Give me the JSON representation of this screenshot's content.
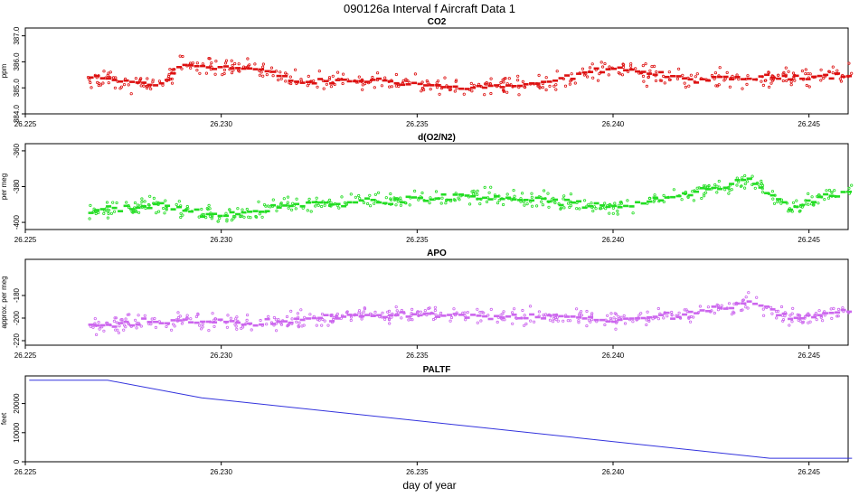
{
  "figure": {
    "title": "090126a   Interval f Aircraft Data 1",
    "xlabel": "day of year"
  },
  "chart_data": [
    {
      "type": "scatter",
      "title": "CO2",
      "ylabel": "ppm",
      "xlim": [
        26.225,
        26.246
      ],
      "ylim": [
        384.0,
        387.3
      ],
      "x_ticks": [
        "26.225",
        "26.230",
        "26.235",
        "26.240",
        "26.245"
      ],
      "y_ticks": [
        "384.0",
        "385.0",
        "386.0",
        "387.0"
      ],
      "color": "#dd1111",
      "x_range": [
        26.2266,
        26.2461
      ],
      "trend": [
        [
          26.2266,
          385.4
        ],
        [
          26.2285,
          385.1
        ],
        [
          26.229,
          385.9
        ],
        [
          26.23,
          385.8
        ],
        [
          26.231,
          385.7
        ],
        [
          26.232,
          385.2
        ],
        [
          26.234,
          385.3
        ],
        [
          26.236,
          385.0
        ],
        [
          26.238,
          385.1
        ],
        [
          26.24,
          385.8
        ],
        [
          26.242,
          385.3
        ],
        [
          26.244,
          385.4
        ],
        [
          26.2461,
          385.5
        ]
      ],
      "scatter_spread": 0.55,
      "mean_spread": 0.15
    },
    {
      "type": "scatter",
      "title": "d(O2/N2)",
      "ylabel": "per meg",
      "xlim": [
        26.225,
        26.246
      ],
      "ylim": [
        -404,
        -356
      ],
      "x_ticks": [
        "26.225",
        "26.230",
        "26.235",
        "26.240",
        "26.245"
      ],
      "y_ticks": [
        "-400",
        "-380",
        "-360"
      ],
      "color": "#22dd22",
      "x_range": [
        26.2266,
        26.2461
      ],
      "trend": [
        [
          26.2266,
          -394
        ],
        [
          26.2285,
          -390
        ],
        [
          26.23,
          -397
        ],
        [
          26.232,
          -390
        ],
        [
          26.234,
          -388
        ],
        [
          26.236,
          -386
        ],
        [
          26.238,
          -387
        ],
        [
          26.24,
          -392
        ],
        [
          26.242,
          -384
        ],
        [
          26.2435,
          -377
        ],
        [
          26.2445,
          -392
        ],
        [
          26.2461,
          -381
        ]
      ],
      "scatter_spread": 7,
      "mean_spread": 3
    },
    {
      "type": "scatter",
      "title": "APO",
      "ylabel": "approx. per meg",
      "xlim": [
        26.225,
        26.246
      ],
      "ylim": [
        -224,
        -148
      ],
      "x_ticks": [
        "26.225",
        "26.230",
        "26.235",
        "26.240",
        "26.245"
      ],
      "y_ticks": [
        "-220",
        "-200",
        "-180"
      ],
      "color": "#cc66ee",
      "x_range": [
        26.2266,
        26.2461
      ],
      "trend": [
        [
          26.2266,
          -207
        ],
        [
          26.229,
          -202
        ],
        [
          26.231,
          -204
        ],
        [
          26.233,
          -199
        ],
        [
          26.235,
          -196
        ],
        [
          26.237,
          -199
        ],
        [
          26.239,
          -198
        ],
        [
          26.24,
          -203
        ],
        [
          26.242,
          -196
        ],
        [
          26.2435,
          -186
        ],
        [
          26.2445,
          -200
        ],
        [
          26.2461,
          -194
        ]
      ],
      "scatter_spread": 11,
      "mean_spread": 4
    },
    {
      "type": "line",
      "title": "PALTF",
      "ylabel": "feet",
      "xlim": [
        26.225,
        26.246
      ],
      "ylim": [
        0,
        29500
      ],
      "x_ticks": [
        "26.225",
        "26.230",
        "26.235",
        "26.240",
        "26.245"
      ],
      "y_ticks": [
        "0",
        "10000",
        "20000"
      ],
      "color": "#3333dd",
      "x": [
        26.2251,
        26.2271,
        26.2295,
        26.244,
        26.2461
      ],
      "y": [
        28000,
        28000,
        22000,
        1200,
        1200
      ]
    }
  ]
}
